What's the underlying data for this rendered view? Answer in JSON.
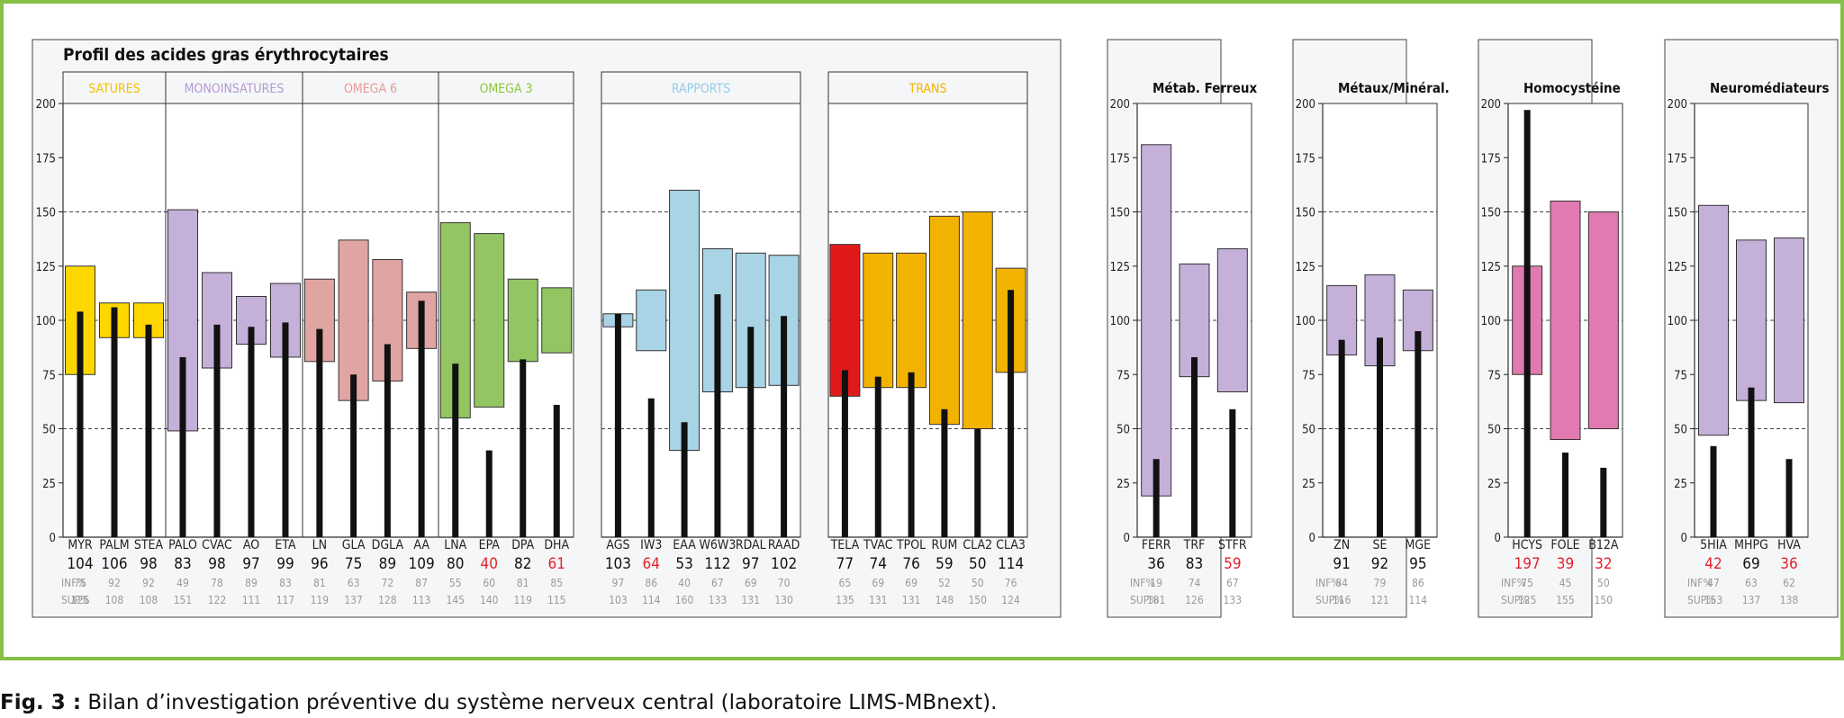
{
  "caption": {
    "label": "Fig. 3 :",
    "text": "Bilan d’investigation préventive du système nerveux central (laboratoire LIMS-MBnext)."
  },
  "colors": {
    "frame": "#86c046",
    "panel_bg": "#f5f6f8",
    "bar": "#111111",
    "out_of_range": "#e0232a",
    "info": "#9a9a9a"
  },
  "row_labels": {
    "inf": "INF%",
    "sup": "SUP%"
  },
  "chart_data": [
    {
      "type": "bar",
      "panel": "main",
      "title": "Profil des acides gras érythrocytaires",
      "ylim": [
        0,
        200
      ],
      "yticks": [
        0,
        25,
        50,
        75,
        100,
        125,
        150,
        175,
        200
      ],
      "dashed_gridlines": [
        50,
        100,
        150
      ],
      "groups": [
        {
          "name": "SATURES",
          "color": "#ffd700",
          "label_color": "#f2c200",
          "items": [
            {
              "name": "MYR",
              "value": 104,
              "inf": 75,
              "sup": 125
            },
            {
              "name": "PALM",
              "value": 106,
              "inf": 92,
              "sup": 108
            },
            {
              "name": "STEA",
              "value": 98,
              "inf": 92,
              "sup": 108
            }
          ]
        },
        {
          "name": "MONOINSATURES",
          "color": "#c4b0d8",
          "label_color": "#b39ad2",
          "items": [
            {
              "name": "PALO",
              "value": 83,
              "inf": 49,
              "sup": 151
            },
            {
              "name": "CVAC",
              "value": 98,
              "inf": 78,
              "sup": 122
            },
            {
              "name": "AO",
              "value": 97,
              "inf": 89,
              "sup": 111
            },
            {
              "name": "ETA",
              "value": 99,
              "inf": 83,
              "sup": 117
            }
          ]
        },
        {
          "name": "OMEGA 6",
          "color": "#e0a4a2",
          "label_color": "#e69a96",
          "items": [
            {
              "name": "LN",
              "value": 96,
              "inf": 81,
              "sup": 119
            },
            {
              "name": "GLA",
              "value": 75,
              "inf": 63,
              "sup": 137
            },
            {
              "name": "DGLA",
              "value": 89,
              "inf": 72,
              "sup": 128
            },
            {
              "name": "AA",
              "value": 109,
              "inf": 87,
              "sup": 113
            }
          ]
        },
        {
          "name": "OMEGA 3",
          "color": "#93c663",
          "label_color": "#8cc63e",
          "items": [
            {
              "name": "LNA",
              "value": 80,
              "inf": 55,
              "sup": 145
            },
            {
              "name": "EPA",
              "value": 40,
              "inf": 60,
              "sup": 140,
              "flag": true
            },
            {
              "name": "DPA",
              "value": 82,
              "inf": 81,
              "sup": 119
            },
            {
              "name": "DHA",
              "value": 61,
              "inf": 85,
              "sup": 115,
              "flag": true
            }
          ]
        },
        {
          "name": "RAPPORTS",
          "color": "#a8d4e6",
          "label_color": "#93cde6",
          "items": [
            {
              "name": "AGS",
              "value": 103,
              "inf": 97,
              "sup": 103
            },
            {
              "name": "IW3",
              "value": 64,
              "inf": 86,
              "sup": 114,
              "flag": true
            },
            {
              "name": "EAA",
              "value": 53,
              "inf": 40,
              "sup": 160
            },
            {
              "name": "W6W3",
              "value": 112,
              "inf": 67,
              "sup": 133
            },
            {
              "name": "RDAL",
              "value": 97,
              "inf": 69,
              "sup": 131
            },
            {
              "name": "RAAD",
              "value": 102,
              "inf": 70,
              "sup": 130
            }
          ]
        },
        {
          "name": "TRANS",
          "color": "#f2b300",
          "label_color": "#f2b300",
          "items": [
            {
              "name": "TELA",
              "value": 77,
              "inf": 65,
              "sup": 135,
              "color": "#e01a1a"
            },
            {
              "name": "TVAC",
              "value": 74,
              "inf": 69,
              "sup": 131
            },
            {
              "name": "TPOL",
              "value": 76,
              "inf": 69,
              "sup": 131
            },
            {
              "name": "RUM",
              "value": 59,
              "inf": 52,
              "sup": 148
            },
            {
              "name": "CLA2",
              "value": 50,
              "inf": 50,
              "sup": 150
            },
            {
              "name": "CLA3",
              "value": 114,
              "inf": 76,
              "sup": 124
            }
          ]
        }
      ]
    },
    {
      "type": "bar",
      "panel": "small",
      "title": "Métab. Ferreux",
      "ylim": [
        0,
        200
      ],
      "yticks": [
        0,
        25,
        50,
        75,
        100,
        125,
        150,
        175,
        200
      ],
      "dashed_gridlines": [
        50,
        100,
        150
      ],
      "color": "#c4b0d8",
      "items": [
        {
          "name": "FERR",
          "value": 36,
          "inf": 19,
          "sup": 181
        },
        {
          "name": "TRF",
          "value": 83,
          "inf": 74,
          "sup": 126
        },
        {
          "name": "STFR",
          "value": 59,
          "inf": 67,
          "sup": 133,
          "flag": true
        }
      ]
    },
    {
      "type": "bar",
      "panel": "small",
      "title": "Métaux/Minéral.",
      "ylim": [
        0,
        200
      ],
      "yticks": [
        0,
        25,
        50,
        75,
        100,
        125,
        150,
        175,
        200
      ],
      "dashed_gridlines": [
        50,
        100,
        150
      ],
      "color": "#c4b0d8",
      "items": [
        {
          "name": "ZN",
          "value": 91,
          "inf": 84,
          "sup": 116
        },
        {
          "name": "SE",
          "value": 92,
          "inf": 79,
          "sup": 121
        },
        {
          "name": "MGE",
          "value": 95,
          "inf": 86,
          "sup": 114
        }
      ]
    },
    {
      "type": "bar",
      "panel": "small",
      "title": "Homocystéine",
      "ylim": [
        0,
        200
      ],
      "yticks": [
        0,
        25,
        50,
        75,
        100,
        125,
        150,
        175,
        200
      ],
      "dashed_gridlines": [
        50,
        100,
        150
      ],
      "color": "#e07ab0",
      "items": [
        {
          "name": "HCYS",
          "value": 197,
          "inf": 75,
          "sup": 125,
          "flag": true
        },
        {
          "name": "FOLE",
          "value": 39,
          "inf": 45,
          "sup": 155,
          "flag": true
        },
        {
          "name": "B12A",
          "value": 32,
          "inf": 50,
          "sup": 150,
          "flag": true
        }
      ]
    },
    {
      "type": "bar",
      "panel": "small",
      "title": "Neuromédiateurs",
      "ylim": [
        0,
        200
      ],
      "yticks": [
        0,
        25,
        50,
        75,
        100,
        125,
        150,
        175,
        200
      ],
      "dashed_gridlines": [
        50,
        100,
        150
      ],
      "color": "#c4b0d8",
      "items": [
        {
          "name": "5HIA",
          "value": 42,
          "inf": 47,
          "sup": 153,
          "flag": true
        },
        {
          "name": "MHPG",
          "value": 69,
          "inf": 63,
          "sup": 137
        },
        {
          "name": "HVA",
          "value": 36,
          "inf": 62,
          "sup": 138,
          "flag": true
        }
      ]
    }
  ]
}
